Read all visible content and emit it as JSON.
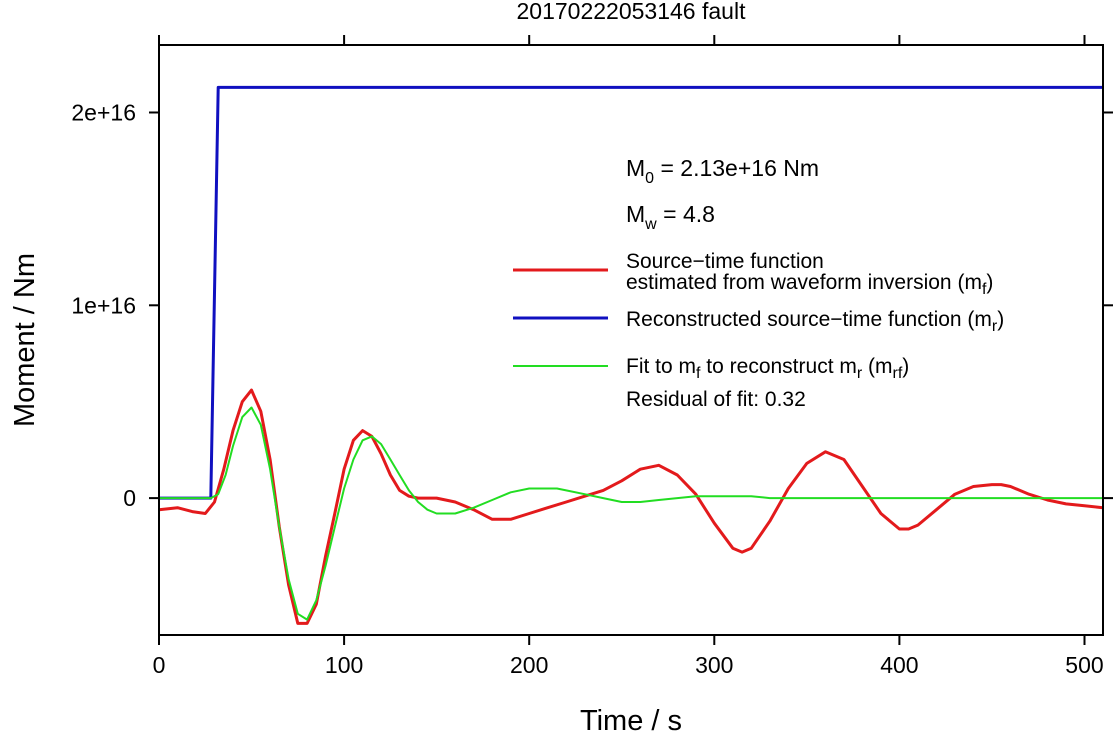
{
  "chart_data": {
    "type": "line",
    "title": "20170222053146 fault",
    "xlabel": "Time / s",
    "ylabel": "Moment / Nm",
    "xlim": [
      0,
      510
    ],
    "ylim": [
      -7100000000000000.0,
      2.35e+16
    ],
    "xticks": [
      0,
      100,
      200,
      300,
      400,
      500
    ],
    "xtick_labels": [
      "0",
      "100",
      "200",
      "300",
      "400",
      "500"
    ],
    "yticks": [
      0,
      1e+16,
      2e+16
    ],
    "ytick_labels": [
      "0",
      "1e+16",
      "2e+16"
    ],
    "grid": false,
    "legend_position": "right",
    "annotations": {
      "m0": {
        "base": "M",
        "sub": "0",
        "text": " = 2.13e+16 Nm"
      },
      "mw": {
        "base": "M",
        "sub": "w",
        "text": " = 4.8"
      },
      "residual": "Residual of fit: 0.32"
    },
    "series": [
      {
        "name": "Source−time function estimated from waveform inversion (m_f)",
        "legend_line1": "Source−time function",
        "legend_line2_text": "estimated from waveform inversion (m",
        "legend_line2_sub": "f",
        "legend_line2_end": ")",
        "color": "#e31a1c",
        "x": [
          0,
          10,
          18,
          25,
          30,
          35,
          40,
          45,
          50,
          55,
          60,
          65,
          70,
          75,
          80,
          85,
          90,
          95,
          100,
          105,
          110,
          115,
          120,
          125,
          130,
          135,
          140,
          150,
          160,
          170,
          180,
          190,
          200,
          210,
          220,
          230,
          240,
          250,
          260,
          270,
          280,
          290,
          300,
          310,
          315,
          320,
          330,
          340,
          350,
          360,
          370,
          380,
          390,
          400,
          405,
          410,
          420,
          430,
          440,
          450,
          455,
          460,
          470,
          480,
          490,
          500,
          510
        ],
        "y": [
          -600000000000000.0,
          -500000000000000.0,
          -700000000000000.0,
          -800000000000000.0,
          -200000000000000.0,
          1500000000000000.0,
          3500000000000000.0,
          5000000000000000.0,
          5600000000000000.0,
          4500000000000000.0,
          2000000000000000.0,
          -1500000000000000.0,
          -4500000000000000.0,
          -6500000000000000.0,
          -6500000000000000.0,
          -5500000000000000.0,
          -3000000000000000.0,
          -800000000000000.0,
          1500000000000000.0,
          3000000000000000.0,
          3500000000000000.0,
          3200000000000000.0,
          2300000000000000.0,
          1200000000000000.0,
          400000000000000.0,
          100000000000000.0,
          0,
          0,
          -200000000000000.0,
          -600000000000000.0,
          -1100000000000000.0,
          -1100000000000000.0,
          -800000000000000.0,
          -500000000000000.0,
          -200000000000000.0,
          100000000000000.0,
          400000000000000.0,
          900000000000000.0,
          1500000000000000.0,
          1700000000000000.0,
          1200000000000000.0,
          200000000000000.0,
          -1300000000000000.0,
          -2600000000000000.0,
          -2800000000000000.0,
          -2600000000000000.0,
          -1200000000000000.0,
          500000000000000.0,
          1800000000000000.0,
          2400000000000000.0,
          2000000000000000.0,
          600000000000000.0,
          -800000000000000.0,
          -1600000000000000.0,
          -1600000000000000.0,
          -1400000000000000.0,
          -600000000000000.0,
          200000000000000.0,
          600000000000000.0,
          700000000000000.0,
          700000000000000.0,
          600000000000000.0,
          200000000000000.0,
          -100000000000000.0,
          -300000000000000.0,
          -400000000000000.0,
          -500000000000000.0
        ]
      },
      {
        "name": "Reconstructed source−time function (m_r)",
        "legend_text": "Reconstructed source−time function (m",
        "legend_sub": "r",
        "legend_end": ")",
        "color": "#1010c0",
        "x": [
          0,
          28,
          32,
          510
        ],
        "y": [
          0,
          0,
          2.13e+16,
          2.13e+16
        ]
      },
      {
        "name": "Fit to m_f to reconstruct m_r (m_rf)",
        "legend_parts": [
          "Fit to m",
          "f",
          " to reconstruct m",
          "r",
          " (m",
          "rf",
          ")"
        ],
        "color": "#22dd22",
        "x": [
          0,
          28,
          32,
          36,
          40,
          45,
          50,
          55,
          60,
          65,
          70,
          75,
          80,
          85,
          90,
          95,
          100,
          105,
          110,
          115,
          120,
          125,
          130,
          135,
          140,
          145,
          150,
          160,
          170,
          180,
          190,
          200,
          210,
          215,
          220,
          230,
          240,
          250,
          260,
          270,
          280,
          290,
          300,
          310,
          320,
          330,
          340,
          350,
          360,
          380,
          400,
          420,
          440,
          460,
          480,
          500,
          510
        ],
        "y": [
          0,
          0,
          200000000000000.0,
          1200000000000000.0,
          2700000000000000.0,
          4200000000000000.0,
          4700000000000000.0,
          3800000000000000.0,
          1500000000000000.0,
          -1500000000000000.0,
          -4200000000000000.0,
          -6000000000000000.0,
          -6300000000000000.0,
          -5300000000000000.0,
          -3500000000000000.0,
          -1500000000000000.0,
          500000000000000.0,
          2000000000000000.0,
          3000000000000000.0,
          3200000000000000.0,
          2800000000000000.0,
          2000000000000000.0,
          1200000000000000.0,
          400000000000000.0,
          -200000000000000.0,
          -600000000000000.0,
          -800000000000000.0,
          -800000000000000.0,
          -500000000000000.0,
          -100000000000000.0,
          300000000000000.0,
          500000000000000.0,
          500000000000000.0,
          500000000000000.0,
          400000000000000.0,
          200000000000000.0,
          0,
          -200000000000000.0,
          -200000000000000.0,
          -100000000000000.0,
          0,
          100000000000000.0,
          100000000000000.0,
          100000000000000.0,
          100000000000000.0,
          0,
          0,
          0,
          0,
          0,
          0,
          0,
          0,
          0,
          0,
          0,
          0
        ]
      }
    ]
  }
}
